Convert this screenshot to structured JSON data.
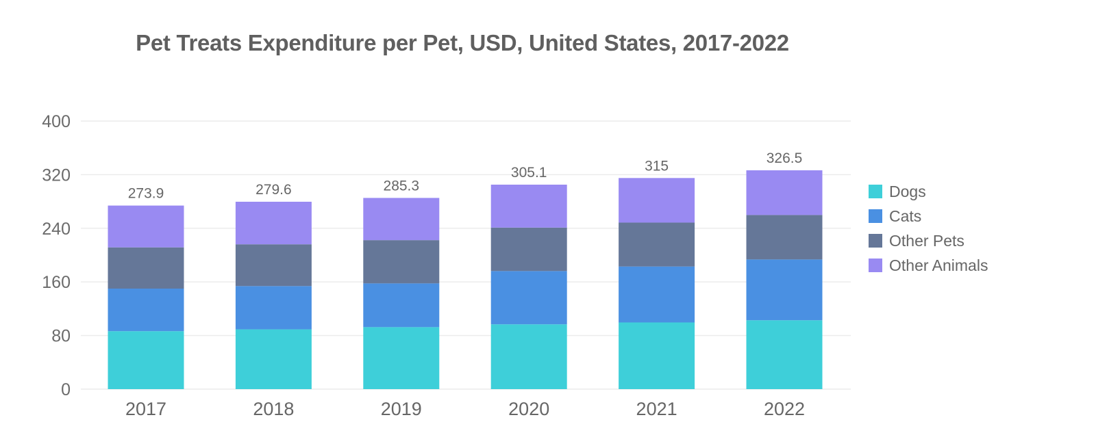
{
  "chart_data": {
    "type": "bar",
    "stacked": true,
    "title": "Pet Treats Expenditure per Pet, USD, United States, 2017-2022",
    "xlabel": "",
    "ylabel": "",
    "ylim": [
      0,
      400
    ],
    "yticks": [
      0,
      80,
      160,
      240,
      320,
      400
    ],
    "grid": true,
    "legend_position": "right",
    "categories": [
      "2017",
      "2018",
      "2019",
      "2020",
      "2021",
      "2022"
    ],
    "totals": [
      "273.9",
      "279.6",
      "285.3",
      "305.1",
      "315",
      "326.5"
    ],
    "series": [
      {
        "name": "Dogs",
        "color": "#3ecfd9",
        "values": [
          86.5,
          89.2,
          92.5,
          96.7,
          99.5,
          102.8
        ]
      },
      {
        "name": "Cats",
        "color": "#4a90e2",
        "values": [
          63.5,
          64.6,
          65.3,
          79.5,
          83.5,
          90.7
        ]
      },
      {
        "name": "Other Pets",
        "color": "#657798",
        "values": [
          61.5,
          62.3,
          64.5,
          64.8,
          65.5,
          66.3
        ]
      },
      {
        "name": "Other Animals",
        "color": "#998af2",
        "values": [
          62.4,
          63.5,
          63.0,
          64.1,
          66.5,
          66.7
        ]
      }
    ]
  }
}
